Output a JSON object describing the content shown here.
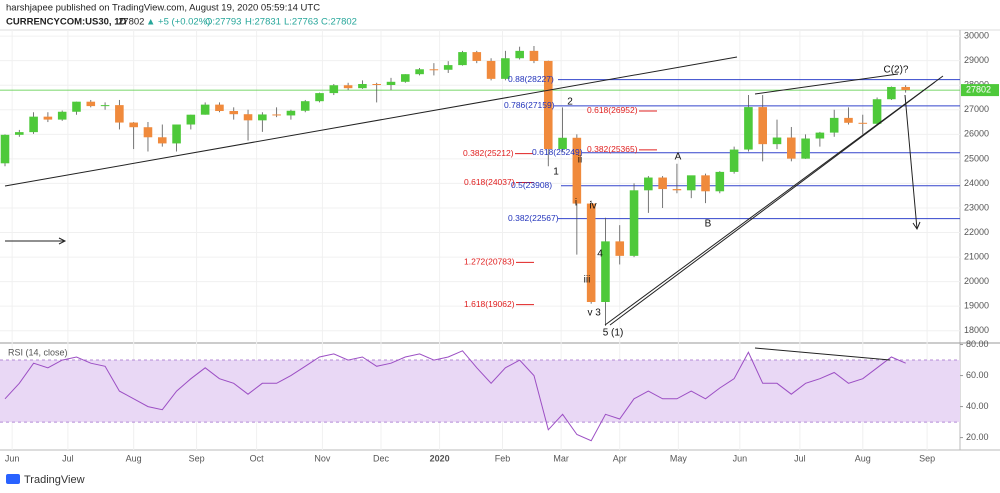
{
  "header": {
    "publisher": "harshjapee published on TradingView.com, August 19, 2020 05:59:14 UTC",
    "symbol": "CURRENCYCOM:US30, 1D",
    "price": "27802",
    "change": "▲ +5 (+0.02%)",
    "open": "O:27793",
    "high": "H:27831",
    "low": "L:27763",
    "close": "C:27802"
  },
  "footer": {
    "logo": "TradingView"
  },
  "chart_data": [
    {
      "type": "candlestick",
      "up_color": "#4ec93a",
      "down_color": "#f08a3c",
      "ylim": [
        17500,
        30250
      ],
      "yticks": [
        18000,
        19000,
        20000,
        21000,
        22000,
        23000,
        24000,
        25000,
        26000,
        27000,
        28000,
        29000,
        30000
      ],
      "last_price": 27802,
      "last_price_label": "27802",
      "last_price_color": "#4ec93a",
      "xlim": [
        -0.35,
        66.8
      ],
      "xticks": [
        {
          "value": 0.5,
          "label": "Jun"
        },
        {
          "value": 4.4,
          "label": "Jul"
        },
        {
          "value": 9,
          "label": "Aug"
        },
        {
          "value": 13.4,
          "label": "Sep"
        },
        {
          "value": 17.6,
          "label": "Oct"
        },
        {
          "value": 22.2,
          "label": "Nov"
        },
        {
          "value": 26.3,
          "label": "Dec"
        },
        {
          "value": 30.4,
          "label": "2020"
        },
        {
          "value": 34.8,
          "label": "Feb"
        },
        {
          "value": 38.9,
          "label": "Mar"
        },
        {
          "value": 43,
          "label": "Apr"
        },
        {
          "value": 47.1,
          "label": "May"
        },
        {
          "value": 51.4,
          "label": "Jun"
        },
        {
          "value": 55.6,
          "label": "Jul"
        },
        {
          "value": 60,
          "label": "Aug"
        },
        {
          "value": 64.5,
          "label": "Sep"
        }
      ],
      "open": [
        24820,
        25980,
        26090,
        26720,
        26600,
        26920,
        27330,
        27150,
        27190,
        26480,
        26290,
        25880,
        25630,
        26400,
        26800,
        27210,
        26950,
        26820,
        26570,
        26810,
        26770,
        26960,
        27350,
        27680,
        28000,
        27880,
        28050,
        28010,
        28140,
        28450,
        28650,
        28630,
        28820,
        29350,
        28990,
        28260,
        29100,
        29400,
        28990,
        25400,
        25860,
        23180,
        19170,
        21640,
        21050,
        23720,
        24240,
        23770,
        23720,
        24330,
        23680,
        24470,
        25380,
        27110,
        25600,
        25870,
        25010,
        25830,
        26070,
        26670,
        26470,
        26430,
        27430,
        27930
      ],
      "high": [
        26000,
        26180,
        26900,
        26900,
        26970,
        27330,
        27400,
        27300,
        27400,
        26500,
        26500,
        26400,
        26400,
        26800,
        27300,
        27300,
        27100,
        27000,
        26900,
        27100,
        27000,
        27400,
        27700,
        28050,
        28100,
        28200,
        28100,
        28300,
        28450,
        28700,
        28900,
        28980,
        29400,
        29400,
        29100,
        29400,
        29570,
        29600,
        29000,
        27100,
        26000,
        23300,
        22600,
        22300,
        24000,
        24300,
        24300,
        24800,
        24300,
        24400,
        24500,
        25500,
        27600,
        27600,
        26600,
        26300,
        26000,
        26100,
        27000,
        27100,
        26800,
        27500,
        27950,
        28000
      ],
      "low": [
        24700,
        25900,
        26020,
        26500,
        26550,
        26800,
        27100,
        27000,
        26200,
        25400,
        25300,
        25500,
        25300,
        26200,
        26800,
        26900,
        26600,
        25750,
        26100,
        26700,
        26600,
        26900,
        27300,
        27600,
        27800,
        27850,
        27300,
        27800,
        28100,
        28400,
        28400,
        28500,
        28800,
        28900,
        28200,
        28200,
        29050,
        28900,
        24700,
        25300,
        21100,
        19100,
        18200,
        20700,
        21000,
        22800,
        23000,
        23600,
        23400,
        23200,
        23600,
        24400,
        25300,
        24900,
        25400,
        24900,
        25000,
        25500,
        25900,
        26400,
        26000,
        26400,
        27400,
        27700
      ],
      "close": [
        25980,
        26090,
        26720,
        26600,
        26920,
        27330,
        27150,
        27190,
        26480,
        26290,
        25880,
        25630,
        26400,
        26800,
        27210,
        26950,
        26820,
        26570,
        26810,
        26770,
        26960,
        27350,
        27680,
        28000,
        27880,
        28050,
        28010,
        28140,
        28450,
        28650,
        28630,
        28820,
        29350,
        28990,
        28260,
        29100,
        29400,
        28990,
        25400,
        25860,
        23180,
        19170,
        21640,
        21050,
        23720,
        24240,
        23770,
        23720,
        24330,
        23680,
        24470,
        25380,
        27110,
        25600,
        25870,
        25010,
        25830,
        26070,
        26670,
        26470,
        26430,
        27430,
        27930,
        27802
      ],
      "fib_blue": [
        {
          "label": "0.88(28227)",
          "value": 28227
        },
        {
          "label": "0.786(27159)",
          "value": 27159
        },
        {
          "label": "0.618(25249)",
          "value": 25249
        },
        {
          "label": "0.5(23908)",
          "value": 23908
        },
        {
          "label": "0.382(22567)",
          "value": 22567
        }
      ],
      "fib_red": [
        {
          "label": "0.618(26952)",
          "value": 26952
        },
        {
          "label": "0.382(25365)",
          "value": 25365
        },
        {
          "label": "0.382(25212)",
          "value": 25212
        },
        {
          "label": "0.618(24037)",
          "value": 24037
        },
        {
          "label": "1.272(20783)",
          "value": 20783
        },
        {
          "label": "1.618(19062)",
          "value": 19062
        }
      ],
      "waves": [
        "1",
        "2",
        "ii",
        "i",
        "iv",
        "iii",
        "4",
        "v",
        "3",
        "5 (1)",
        "A",
        "B",
        "C(2)?"
      ]
    },
    {
      "type": "line",
      "title": "RSI (14, close)",
      "color": "#9c4fc4",
      "band_color": "#e9d8f5",
      "ylim": [
        12,
        81
      ],
      "band": [
        30,
        70
      ],
      "yticks": [
        {
          "value": 20,
          "label": "20.00"
        },
        {
          "value": 40,
          "label": "40.00"
        },
        {
          "value": 60,
          "label": "60.00"
        },
        {
          "value": 80,
          "label": "80.00"
        }
      ],
      "values": [
        45,
        55,
        68,
        65,
        70,
        72,
        68,
        66,
        50,
        45,
        40,
        38,
        50,
        58,
        65,
        58,
        55,
        48,
        55,
        55,
        60,
        66,
        72,
        74,
        70,
        72,
        66,
        68,
        72,
        74,
        70,
        72,
        76,
        65,
        55,
        65,
        70,
        60,
        25,
        35,
        22,
        18,
        35,
        32,
        45,
        50,
        45,
        45,
        50,
        45,
        52,
        58,
        75,
        55,
        55,
        48,
        55,
        58,
        62,
        55,
        58,
        65,
        72,
        68
      ]
    }
  ]
}
